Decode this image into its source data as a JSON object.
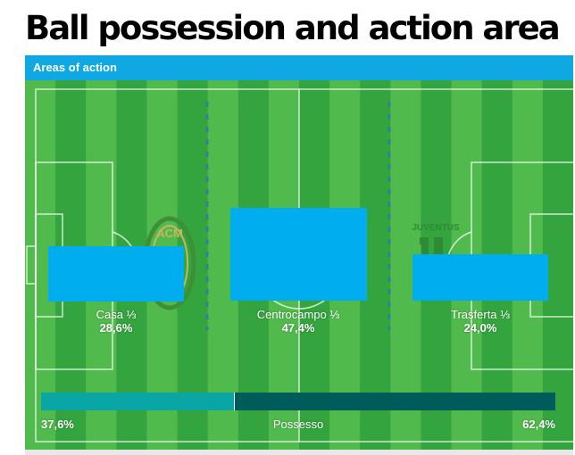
{
  "page": {
    "title": "Ball possession and action area"
  },
  "widget": {
    "header": "Areas of action",
    "zones": [
      {
        "label": "Casa ⅓",
        "value": "28,6%",
        "share": 28.6
      },
      {
        "label": "Centrocampo ⅓",
        "value": "47,4%",
        "share": 47.4
      },
      {
        "label": "Trasferta ⅓",
        "value": "24,0%",
        "share": 24.0
      }
    ],
    "possession": {
      "label": "Possesso",
      "home": "37,6%",
      "away": "62,4%",
      "home_fraction": 0.376
    },
    "home_logo": {
      "icon": "ac-milan-crest-icon",
      "text": "ACM"
    },
    "away_logo": {
      "icon": "juventus-logo-icon",
      "text": "JUVENTUS"
    }
  },
  "colors": {
    "header": "#0fa8e2",
    "bars": "#00aeef",
    "pitch_light": "#51ba4c",
    "pitch_dark": "#33a43e",
    "possession_home": "#0aa6a6",
    "possession_away": "#005b5b"
  }
}
